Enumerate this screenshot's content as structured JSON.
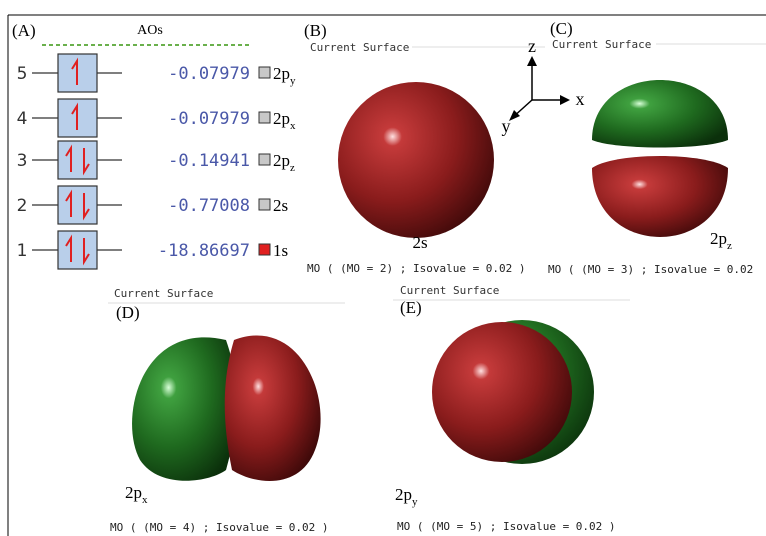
{
  "panel_a": {
    "label": "(A)",
    "title": "AOs",
    "levels": [
      {
        "index": "5",
        "energy": "-0.07979",
        "orbital": "2p",
        "sub": "y"
      },
      {
        "index": "4",
        "energy": "-0.07979",
        "orbital": "2p",
        "sub": "x"
      },
      {
        "index": "3",
        "energy": "-0.14941",
        "orbital": "2p",
        "sub": "z"
      },
      {
        "index": "2",
        "energy": "-0.77008",
        "orbital": "2s"
      },
      {
        "index": "1",
        "energy": "-18.86697",
        "orbital": "1s"
      }
    ]
  },
  "panel_b": {
    "label": "(B)",
    "header": "Current Surface",
    "orbital": "2s",
    "footer": "MO ( (MO = 2) ; Isovalue = 0.02 )",
    "axes": {
      "z": "z",
      "x": "x",
      "y": "y"
    }
  },
  "panel_c": {
    "label": "(C)",
    "header": "Current Surface",
    "orbital": "2p",
    "sub": "z",
    "footer": "MO ( (MO = 3) ; Isovalue = 0.02"
  },
  "panel_d": {
    "label": "(D)",
    "header": "Current Surface",
    "orbital": "2p",
    "sub": "x",
    "footer": "MO ( (MO = 4) ; Isovalue = 0.02 )"
  },
  "panel_e": {
    "label": "(E)",
    "header": "Current Surface",
    "orbital": "2p",
    "sub": "y",
    "footer": "MO ( (MO = 5) ; Isovalue = 0.02 )"
  }
}
